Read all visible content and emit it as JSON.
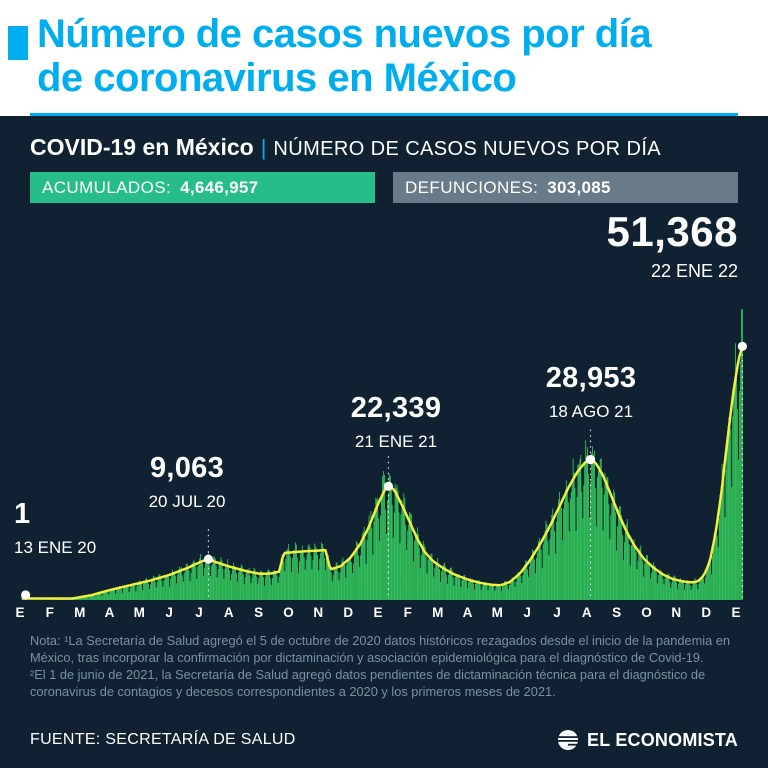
{
  "header": {
    "title_line1": "Número de casos nuevos por día",
    "title_line2": "de coronavirus en México",
    "subtitle_bold": "COVID-19 en México",
    "subtitle_sep": "|",
    "subtitle_rest": "NÚMERO DE CASOS NUEVOS POR DÍA"
  },
  "badges": {
    "accumulated_label": "ACUMULADOS:",
    "accumulated_value": "4,646,957",
    "deaths_label": "DEFUNCIONES:",
    "deaths_value": "303,085"
  },
  "colors": {
    "accent_cyan": "#00aeef",
    "background": "#102231",
    "green_badge": "#27bd89",
    "gray_badge": "#697a89",
    "series_green": "#35d05f",
    "line_yellow": "#f3ef3d",
    "note_gray": "#7b90a4"
  },
  "chart_data": {
    "type": "bar",
    "title": "COVID-19 en México — Número de casos nuevos por día de coronavirus",
    "unit": "casos nuevos por día",
    "x_axis_labels": [
      "E",
      "F",
      "M",
      "A",
      "M",
      "J",
      "J",
      "A",
      "S",
      "O",
      "N",
      "D",
      "E",
      "F",
      "M",
      "A",
      "M",
      "J",
      "J",
      "A",
      "S",
      "O",
      "N",
      "D",
      "E"
    ],
    "x_axis_note": "meses de enero 2020 a enero 2022",
    "ylim": [
      0,
      53000
    ],
    "timeline_days": 765,
    "grid": false,
    "annotations": [
      {
        "label": "1",
        "date": "13 ENE 20",
        "day": 12,
        "value": 1
      },
      {
        "label": "9,063",
        "date": "20 JUL 20",
        "day": 201,
        "value": 9063
      },
      {
        "label": "22,339",
        "date": "21 ENE 21",
        "day": 387,
        "value": 22339
      },
      {
        "label": "28,953",
        "date": "18 AGO 21",
        "day": 596,
        "value": 28953
      },
      {
        "label": "51,368",
        "date": "22 ENE 22",
        "day": 753,
        "value": 51368
      }
    ],
    "baseline_series": [
      [
        0,
        0
      ],
      [
        12,
        1
      ],
      [
        40,
        60
      ],
      [
        60,
        250
      ],
      [
        80,
        850
      ],
      [
        100,
        1800
      ],
      [
        120,
        2600
      ],
      [
        140,
        3400
      ],
      [
        160,
        4400
      ],
      [
        180,
        5700
      ],
      [
        195,
        6900
      ],
      [
        201,
        7200
      ],
      [
        210,
        6600
      ],
      [
        225,
        5800
      ],
      [
        240,
        5100
      ],
      [
        255,
        4600
      ],
      [
        266,
        4700
      ],
      [
        274,
        5000
      ],
      [
        279,
        8300
      ],
      [
        300,
        8600
      ],
      [
        322,
        8800
      ],
      [
        327,
        5400
      ],
      [
        338,
        6000
      ],
      [
        348,
        7500
      ],
      [
        358,
        9900
      ],
      [
        366,
        12600
      ],
      [
        376,
        16800
      ],
      [
        384,
        19700
      ],
      [
        387,
        20100
      ],
      [
        393,
        19500
      ],
      [
        401,
        16800
      ],
      [
        409,
        13800
      ],
      [
        417,
        10800
      ],
      [
        425,
        8400
      ],
      [
        433,
        6900
      ],
      [
        443,
        5700
      ],
      [
        453,
        4700
      ],
      [
        463,
        4000
      ],
      [
        473,
        3400
      ],
      [
        483,
        3000
      ],
      [
        493,
        2700
      ],
      [
        503,
        2600
      ],
      [
        513,
        3200
      ],
      [
        523,
        4700
      ],
      [
        533,
        6900
      ],
      [
        543,
        9600
      ],
      [
        553,
        12700
      ],
      [
        563,
        16200
      ],
      [
        573,
        19800
      ],
      [
        583,
        22800
      ],
      [
        591,
        24400
      ],
      [
        596,
        24800
      ],
      [
        601,
        24300
      ],
      [
        609,
        22000
      ],
      [
        617,
        18600
      ],
      [
        625,
        15200
      ],
      [
        633,
        12200
      ],
      [
        641,
        9700
      ],
      [
        651,
        7300
      ],
      [
        661,
        5700
      ],
      [
        671,
        4500
      ],
      [
        681,
        3700
      ],
      [
        691,
        3300
      ],
      [
        701,
        3100
      ],
      [
        707,
        3300
      ],
      [
        713,
        4300
      ],
      [
        719,
        6600
      ],
      [
        725,
        11500
      ],
      [
        731,
        18500
      ],
      [
        737,
        27500
      ],
      [
        743,
        36000
      ],
      [
        749,
        42500
      ],
      [
        753,
        44800
      ]
    ]
  },
  "note": {
    "paragraph1": "Nota: ¹La Secretaría de Salud agregó el 5 de octubre de 2020 datos históricos rezagados desde el inicio de la pandemia en México, tras incorporar la confirmación por dictaminación y asociación epidemiológica para el diagnóstico de Covid-19.",
    "paragraph2": "²El 1 de junio de 2021, la Secretaría de Salud agregó datos pendientes de dictaminación técnica para el diagnóstico de coronavirus de contagios y decesos correspondientes a 2020 y los primeros meses de 2021."
  },
  "footer": {
    "source": "FUENTE: SECRETARÍA DE SALUD",
    "brand": "EL ECONOMISTA"
  }
}
